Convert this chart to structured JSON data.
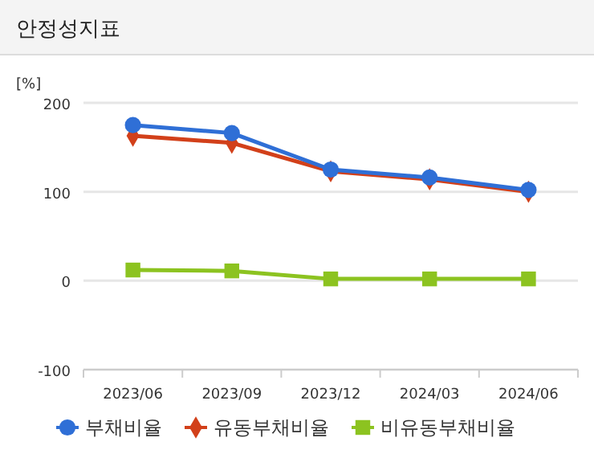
{
  "chart_data": {
    "type": "line",
    "title": "안정성지표",
    "ylabel": "[%]",
    "categories": [
      "2023/06",
      "2023/09",
      "2023/12",
      "2024/03",
      "2024/06"
    ],
    "series": [
      {
        "name": "부채비율",
        "color": "#2f6fd6",
        "values": [
          175,
          166,
          125,
          116,
          102
        ],
        "marker": "circle"
      },
      {
        "name": "유동부채비율",
        "color": "#d2401a",
        "values": [
          163,
          155,
          123,
          114,
          100
        ],
        "marker": "diamond"
      },
      {
        "name": "비유동부채비율",
        "color": "#8cc320",
        "values": [
          12,
          11,
          2,
          2,
          2
        ],
        "marker": "square"
      }
    ],
    "ylim": [
      -100,
      200
    ],
    "yticks": [
      -100,
      0,
      100,
      200
    ],
    "grid": "y",
    "legend": "bottom"
  }
}
